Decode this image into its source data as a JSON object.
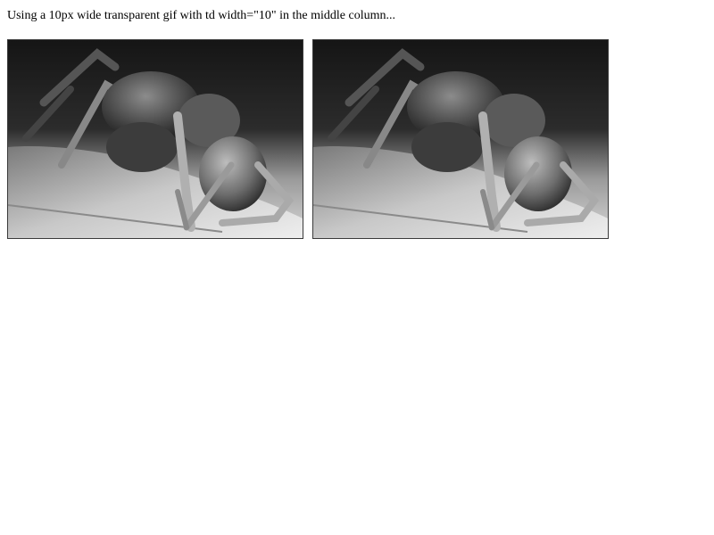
{
  "caption": "Using a 10px wide transparent gif with td width=\"10\" in the middle column...",
  "images": [
    {
      "subject": "ant-photo-left"
    },
    {
      "subject": "ant-photo-right"
    }
  ],
  "spacer": {
    "width_attr": "10"
  }
}
